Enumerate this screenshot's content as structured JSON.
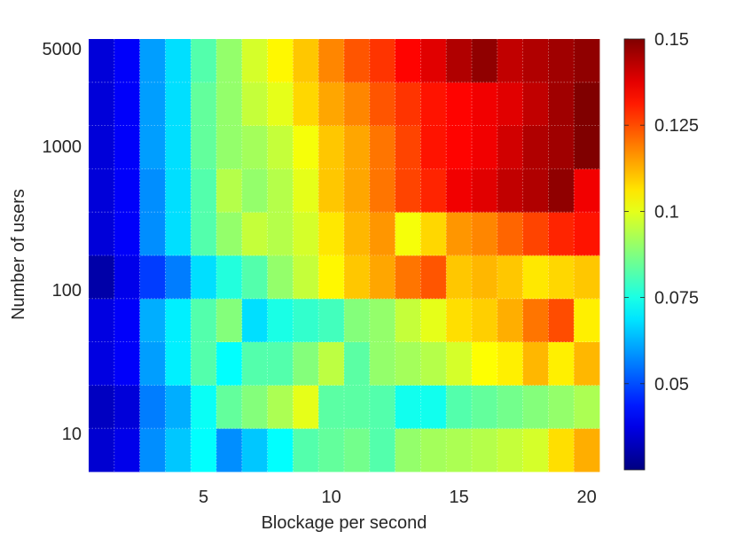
{
  "chart_data": {
    "type": "heatmap",
    "title": "",
    "xlabel": "Blockage per second",
    "ylabel": "Number of users",
    "x_tick_labels": [
      "5",
      "10",
      "15",
      "20"
    ],
    "x_tick_values": [
      5,
      10,
      15,
      20
    ],
    "y_tick_labels": [
      "10",
      "100",
      "1000",
      "5000"
    ],
    "y_scale": "log",
    "x": [
      1,
      2,
      3,
      4,
      5,
      6,
      7,
      8,
      9,
      10,
      11,
      12,
      13,
      14,
      15,
      16,
      17,
      18,
      19,
      20
    ],
    "y": [
      5,
      10,
      20,
      50,
      100,
      200,
      500,
      1000,
      2000,
      5000
    ],
    "z": [
      [
        0.035,
        0.038,
        0.058,
        0.065,
        0.072,
        0.058,
        0.065,
        0.072,
        0.082,
        0.084,
        0.086,
        0.082,
        0.09,
        0.092,
        0.093,
        0.094,
        0.096,
        0.098,
        0.107,
        0.113
      ],
      [
        0.033,
        0.036,
        0.056,
        0.062,
        0.073,
        0.084,
        0.088,
        0.093,
        0.1,
        0.083,
        0.083,
        0.082,
        0.074,
        0.074,
        0.082,
        0.084,
        0.086,
        0.088,
        0.09,
        0.093
      ],
      [
        0.037,
        0.04,
        0.06,
        0.07,
        0.082,
        0.072,
        0.082,
        0.082,
        0.088,
        0.095,
        0.083,
        0.09,
        0.092,
        0.094,
        0.098,
        0.103,
        0.105,
        0.112,
        0.105,
        0.112
      ],
      [
        0.037,
        0.04,
        0.062,
        0.07,
        0.082,
        0.088,
        0.068,
        0.075,
        0.078,
        0.08,
        0.088,
        0.09,
        0.096,
        0.1,
        0.107,
        0.109,
        0.113,
        0.12,
        0.125,
        0.105
      ],
      [
        0.03,
        0.038,
        0.048,
        0.056,
        0.068,
        0.076,
        0.082,
        0.09,
        0.096,
        0.104,
        0.11,
        0.114,
        0.12,
        0.124,
        0.11,
        0.112,
        0.11,
        0.106,
        0.108,
        0.11
      ],
      [
        0.036,
        0.04,
        0.058,
        0.068,
        0.082,
        0.09,
        0.096,
        0.094,
        0.098,
        0.106,
        0.112,
        0.116,
        0.102,
        0.108,
        0.116,
        0.118,
        0.122,
        0.126,
        0.13,
        0.132
      ],
      [
        0.036,
        0.04,
        0.058,
        0.068,
        0.082,
        0.094,
        0.09,
        0.094,
        0.1,
        0.11,
        0.114,
        0.12,
        0.126,
        0.13,
        0.136,
        0.138,
        0.142,
        0.144,
        0.148,
        0.136
      ],
      [
        0.036,
        0.04,
        0.06,
        0.068,
        0.084,
        0.09,
        0.092,
        0.096,
        0.102,
        0.11,
        0.114,
        0.12,
        0.126,
        0.132,
        0.134,
        0.136,
        0.14,
        0.144,
        0.146,
        0.15
      ],
      [
        0.036,
        0.04,
        0.06,
        0.068,
        0.084,
        0.09,
        0.096,
        0.1,
        0.108,
        0.114,
        0.118,
        0.124,
        0.128,
        0.132,
        0.134,
        0.136,
        0.138,
        0.142,
        0.146,
        0.15
      ],
      [
        0.036,
        0.04,
        0.06,
        0.068,
        0.082,
        0.09,
        0.098,
        0.104,
        0.11,
        0.118,
        0.124,
        0.128,
        0.134,
        0.138,
        0.144,
        0.148,
        0.142,
        0.144,
        0.146,
        0.148
      ]
    ],
    "colorbar": {
      "range": [
        0.025,
        0.15
      ],
      "tick_values": [
        0.05,
        0.075,
        0.1,
        0.125,
        0.15
      ],
      "tick_labels": [
        "0.05",
        "0.075",
        "0.1",
        "0.125",
        "0.15"
      ],
      "colormap": "jet"
    },
    "grid": true
  }
}
